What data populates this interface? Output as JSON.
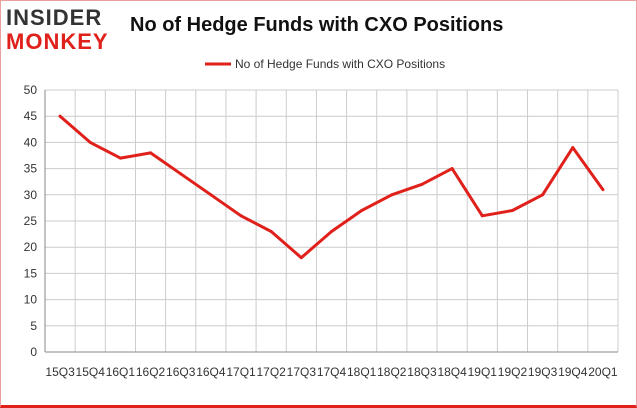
{
  "header": {
    "logo_top": "INSIDER",
    "logo_bottom": "MONKEY",
    "title": "No of Hedge Funds with CXO Positions"
  },
  "colors": {
    "series": "#e0201b",
    "grid": "#cccccc",
    "axis": "#888888"
  },
  "chart_data": {
    "type": "line",
    "title": "No of Hedge Funds with CXO Positions",
    "xlabel": "",
    "ylabel": "",
    "ylim": [
      0,
      50
    ],
    "yticks": [
      0,
      5,
      10,
      15,
      20,
      25,
      30,
      35,
      40,
      45,
      50
    ],
    "grid": true,
    "legend_position": "top-center",
    "categories": [
      "15Q3",
      "15Q4",
      "16Q1",
      "16Q2",
      "16Q3",
      "16Q4",
      "17Q1",
      "17Q2",
      "17Q3",
      "17Q4",
      "18Q1",
      "18Q2",
      "18Q3",
      "18Q4",
      "19Q1",
      "19Q2",
      "19Q3",
      "19Q4",
      "20Q1"
    ],
    "series": [
      {
        "name": "No of Hedge Funds with CXO Positions",
        "values": [
          45,
          40,
          37,
          38,
          34,
          30,
          26,
          23,
          18,
          23,
          27,
          30,
          32,
          35,
          26,
          27,
          30,
          39,
          31
        ]
      }
    ]
  }
}
